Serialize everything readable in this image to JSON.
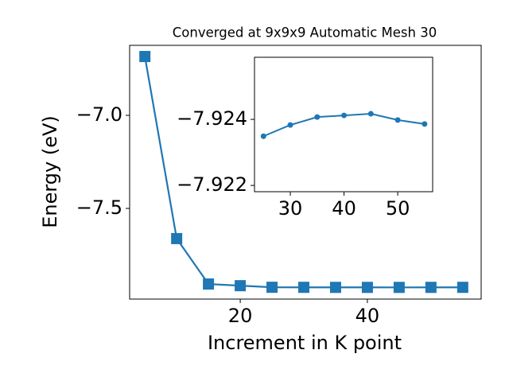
{
  "chart_data": [
    {
      "type": "line",
      "title": "Converged at 9x9x9 Automatic Mesh 30",
      "x_label": "Increment in K point",
      "y_label": "Energy (eV)",
      "x": [
        5,
        10,
        15,
        20,
        25,
        30,
        35,
        40,
        45,
        50,
        55
      ],
      "series": [
        {
          "color": "#1f77b4",
          "marker": "square",
          "values": [
            -6.684,
            -7.662,
            -7.906,
            -7.915,
            -7.92349,
            -7.92383,
            -7.92407,
            -7.92412,
            -7.92417,
            -7.92398,
            -7.92386
          ]
        }
      ],
      "xlim": [
        2.6,
        57.9
      ],
      "ylim": [
        -7.987,
        -6.624
      ],
      "xticks": [
        20,
        40
      ],
      "yticks": [
        {
          "value": -7.0,
          "label": "−7.0"
        },
        {
          "value": -7.5,
          "label": "−7.5"
        }
      ]
    },
    {
      "type": "line",
      "x": [
        25,
        30,
        35,
        40,
        45,
        50,
        55
      ],
      "series": [
        {
          "color": "#1f77b4",
          "marker": "circle",
          "values": [
            -7.92349,
            -7.92383,
            -7.92407,
            -7.92412,
            -7.92417,
            -7.92398,
            -7.92386
          ]
        }
      ],
      "xlim": [
        23.33,
        56.5
      ],
      "ylim": [
        -7.92181,
        -7.92588
      ],
      "xticks": [
        30,
        40,
        50
      ],
      "yticks": [
        {
          "value": -7.924,
          "label": "−7.924"
        },
        {
          "value": -7.922,
          "label": "−7.922"
        }
      ]
    }
  ]
}
